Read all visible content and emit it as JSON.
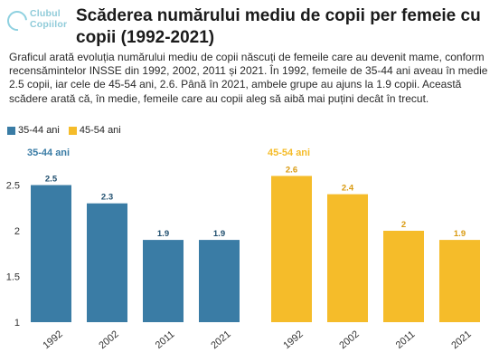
{
  "logo": {
    "line1": "Clubul",
    "line2": "Copiilor"
  },
  "title": "Scăderea numărului mediu de copii per femeie cu copii (1992-2021)",
  "description": "Graficul arată evoluția numărului mediu de copii născuți de femeile care au devenit mame, conform recensămintelor INSSE din 1992, 2002, 2011 și 2021. În 1992, femeile de 35-44 ani aveau în medie 2.5 copii, iar cele de 45-54 ani, 2.6. Până în 2021, ambele grupe au ajuns la 1.9 copii. Această scădere arată că, în medie, femeile care au copii aleg să aibă mai puțini decât în trecut.",
  "legend": [
    {
      "label": "35-44 ani",
      "color": "#3a7ca5"
    },
    {
      "label": "45-54 ani",
      "color": "#f5bc2a"
    }
  ],
  "chart_data": {
    "type": "bar",
    "categories": [
      "1992",
      "2002",
      "2011",
      "2021"
    ],
    "ylim": [
      1,
      2.7
    ],
    "yticks": [
      "1",
      "1.5",
      "2",
      "2.5"
    ],
    "series": [
      {
        "name": "35-44 ani",
        "values": [
          2.5,
          2.3,
          1.9,
          1.9
        ],
        "labels": [
          "2.5",
          "2.3",
          "1.9",
          "1.9"
        ],
        "color": "#3a7ca5",
        "label_color": "#1f4e6e"
      },
      {
        "name": "45-54 ani",
        "values": [
          2.6,
          2.4,
          2.0,
          1.9
        ],
        "labels": [
          "2.6",
          "2.4",
          "2",
          "1.9"
        ],
        "color": "#f5bc2a",
        "label_color": "#d99a10"
      }
    ]
  }
}
